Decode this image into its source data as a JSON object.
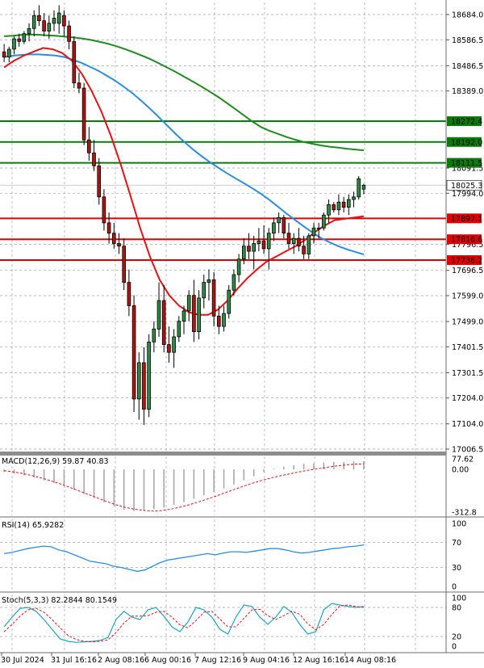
{
  "chart_data": {
    "type": "candlestick",
    "main": {
      "y_ticks": [
        18684.0,
        18586.5,
        18486.5,
        18389.0,
        18091.5,
        17994.0,
        17796.5,
        17696.5,
        17599.0,
        17499.0,
        17401.5,
        17301.5,
        17204.0,
        17104.0,
        17006.5
      ],
      "ylim": [
        17006.5,
        18728
      ],
      "current_price": "18025.3",
      "x_ticks": [
        "30 Jul 2024",
        "31 Jul 16:16",
        "2 Aug 08:16",
        "6 Aug 00:16",
        "7 Aug 12:16",
        "9 Aug 04:16",
        "12 Aug 16:16",
        "14 Aug 08:16"
      ],
      "support_levels": [
        {
          "label": "17897.1",
          "value": 17897.1,
          "color": "#e00000"
        },
        {
          "label": "17816.6",
          "value": 17816.6,
          "color": "#e00000"
        },
        {
          "label": "17736.2",
          "value": 17736.2,
          "color": "#e00000"
        }
      ],
      "resistance_levels": [
        {
          "label": "18272.4",
          "value": 18272.4,
          "color": "#0a7a0a"
        },
        {
          "label": "18192.0",
          "value": 18192.0,
          "color": "#0a7a0a"
        },
        {
          "label": "18111.5",
          "value": 18111.5,
          "color": "#0a7a0a"
        }
      ],
      "candles": [
        [
          18540,
          18570,
          18500,
          18520
        ],
        [
          18520,
          18560,
          18500,
          18550
        ],
        [
          18550,
          18600,
          18530,
          18590
        ],
        [
          18590,
          18610,
          18560,
          18580
        ],
        [
          18580,
          18620,
          18570,
          18610
        ],
        [
          18610,
          18650,
          18580,
          18630
        ],
        [
          18630,
          18700,
          18600,
          18680
        ],
        [
          18680,
          18720,
          18640,
          18660
        ],
        [
          18660,
          18690,
          18600,
          18620
        ],
        [
          18620,
          18680,
          18590,
          18650
        ],
        [
          18650,
          18700,
          18620,
          18670
        ],
        [
          18650,
          18720,
          18610,
          18690
        ],
        [
          18680,
          18700,
          18600,
          18640
        ],
        [
          18640,
          18660,
          18550,
          18580
        ],
        [
          18580,
          18600,
          18400,
          18420
        ],
        [
          18420,
          18460,
          18380,
          18400
        ],
        [
          18400,
          18420,
          18180,
          18200
        ],
        [
          18200,
          18250,
          18120,
          18150
        ],
        [
          18150,
          18200,
          18080,
          18100
        ],
        [
          18100,
          18130,
          17950,
          17980
        ],
        [
          17980,
          18010,
          17850,
          17880
        ],
        [
          17880,
          17920,
          17800,
          17840
        ],
        [
          17840,
          17880,
          17780,
          17800
        ],
        [
          17800,
          17840,
          17760,
          17790
        ],
        [
          17790,
          17820,
          17620,
          17650
        ],
        [
          17650,
          17700,
          17520,
          17560
        ],
        [
          17560,
          17600,
          17150,
          17200
        ],
        [
          17200,
          17380,
          17120,
          17340
        ],
        [
          17340,
          17400,
          17100,
          17160
        ],
        [
          17160,
          17450,
          17130,
          17420
        ],
        [
          17420,
          17500,
          17380,
          17470
        ],
        [
          17470,
          17650,
          17440,
          17580
        ],
        [
          17580,
          17640,
          17380,
          17410
        ],
        [
          17410,
          17480,
          17340,
          17380
        ],
        [
          17380,
          17470,
          17320,
          17440
        ],
        [
          17440,
          17520,
          17420,
          17500
        ],
        [
          17500,
          17560,
          17450,
          17540
        ],
        [
          17540,
          17620,
          17500,
          17600
        ],
        [
          17600,
          17660,
          17420,
          17460
        ],
        [
          17460,
          17620,
          17430,
          17590
        ],
        [
          17590,
          17680,
          17550,
          17650
        ],
        [
          17650,
          17700,
          17580,
          17660
        ],
        [
          17660,
          17690,
          17480,
          17520
        ],
        [
          17520,
          17560,
          17450,
          17480
        ],
        [
          17480,
          17560,
          17460,
          17530
        ],
        [
          17530,
          17640,
          17510,
          17620
        ],
        [
          17620,
          17700,
          17600,
          17680
        ],
        [
          17680,
          17760,
          17650,
          17740
        ],
        [
          17740,
          17820,
          17720,
          17790
        ],
        [
          17790,
          17840,
          17740,
          17770
        ],
        [
          17770,
          17830,
          17700,
          17800
        ],
        [
          17800,
          17860,
          17770,
          17810
        ],
        [
          17810,
          17870,
          17760,
          17780
        ],
        [
          17780,
          17860,
          17700,
          17840
        ],
        [
          17840,
          17900,
          17810,
          17880
        ],
        [
          17880,
          17920,
          17840,
          17900
        ],
        [
          17900,
          17910,
          17820,
          17840
        ],
        [
          17840,
          17880,
          17780,
          17800
        ],
        [
          17800,
          17840,
          17760,
          17820
        ],
        [
          17820,
          17860,
          17770,
          17790
        ],
        [
          17790,
          17830,
          17740,
          17760
        ],
        [
          17760,
          17840,
          17740,
          17830
        ],
        [
          17830,
          17880,
          17800,
          17860
        ],
        [
          17860,
          17880,
          17820,
          17860
        ],
        [
          17860,
          17920,
          17850,
          17910
        ],
        [
          17910,
          17970,
          17880,
          17950
        ],
        [
          17950,
          17960,
          17920,
          17930
        ],
        [
          17930,
          17990,
          17910,
          17960
        ],
        [
          17960,
          17980,
          17920,
          17940
        ],
        [
          17940,
          17990,
          17910,
          17970
        ],
        [
          17970,
          18000,
          17940,
          17980
        ],
        [
          17980,
          18060,
          17970,
          18050
        ],
        [
          18010,
          18030,
          17990,
          18025.3
        ]
      ],
      "ma_lines": [
        {
          "color": "#1e8c1e",
          "values": [
            18600,
            18602,
            18605,
            18607,
            18606,
            18604,
            18602,
            18599,
            18596,
            18592,
            18587,
            18580,
            18572,
            18563,
            18552,
            18540,
            18527,
            18513,
            18497,
            18480,
            18463,
            18445,
            18426,
            18407,
            18387,
            18366,
            18343,
            18319,
            18295,
            18271,
            18250,
            18235,
            18223,
            18211,
            18201,
            18192,
            18185,
            18179,
            18174,
            18170,
            18166,
            18163,
            18160
          ]
        },
        {
          "color": "#2b8de0",
          "values": [
            18520,
            18525,
            18528,
            18530,
            18530,
            18528,
            18526,
            18520,
            18510,
            18498,
            18483,
            18467,
            18448,
            18428,
            18405,
            18380,
            18352,
            18322,
            18290,
            18257,
            18224,
            18194,
            18165,
            18139,
            18115,
            18093,
            18072,
            18052,
            18033,
            18013,
            17992,
            17968,
            17942,
            17915,
            17890,
            17866,
            17843,
            17822,
            17805,
            17790,
            17778,
            17768,
            17758
          ]
        },
        {
          "color": "#e01414",
          "values": [
            18480,
            18505,
            18525,
            18540,
            18555,
            18550,
            18535,
            18505,
            18455,
            18390,
            18310,
            18215,
            18105,
            17985,
            17860,
            17750,
            17660,
            17600,
            17560,
            17535,
            17525,
            17525,
            17545,
            17580,
            17625,
            17665,
            17700,
            17730,
            17750,
            17770,
            17790,
            17815,
            17845,
            17870,
            17890,
            17895,
            17900,
            17905
          ]
        }
      ]
    },
    "macd": {
      "label": "MACD(12,26,9) 59.87 40.83",
      "ticks": [
        "77.62",
        "0.00",
        "-312.8"
      ],
      "range": [
        -312.8,
        77.62
      ],
      "histogram": [
        -20,
        -30,
        -45,
        -60,
        -80,
        -100,
        -120,
        -150,
        -180,
        -210,
        -240,
        -270,
        -295,
        -305,
        -300,
        -290,
        -280,
        -260,
        -240,
        -215,
        -190,
        -165,
        -140,
        -110,
        -80,
        -50,
        -20,
        5,
        20,
        30,
        40,
        45,
        50,
        55,
        55,
        58,
        60
      ],
      "signal": [
        -10,
        -18,
        -30,
        -45,
        -62,
        -82,
        -104,
        -128,
        -154,
        -180,
        -206,
        -232,
        -256,
        -276,
        -290,
        -300,
        -305,
        -302,
        -292,
        -278,
        -260,
        -240,
        -218,
        -195,
        -170,
        -146,
        -122,
        -100,
        -80,
        -62,
        -46,
        -32,
        -18,
        -6,
        5,
        15,
        25,
        32,
        38,
        41
      ]
    },
    "rsi": {
      "label": "RSI(14) 65.9282",
      "ticks": [
        "100",
        "70",
        "30",
        "0"
      ],
      "range": [
        0,
        100
      ],
      "values": [
        52,
        54,
        57,
        60,
        62,
        64,
        63,
        58,
        55,
        50,
        45,
        40,
        38,
        36,
        32,
        30,
        27,
        24,
        26,
        32,
        38,
        42,
        44,
        46,
        48,
        50,
        52,
        50,
        53,
        55,
        55,
        54,
        56,
        58,
        60,
        60,
        58,
        55,
        53,
        54,
        56,
        58,
        60,
        61,
        63,
        64,
        65.93
      ]
    },
    "stoch": {
      "label": "Stoch(5,3,3) 82.2844 80.1549",
      "ticks": [
        "100",
        "80",
        "20",
        "0"
      ],
      "range": [
        0,
        100
      ],
      "k": [
        40,
        60,
        78,
        80,
        72,
        55,
        35,
        15,
        10,
        8,
        9,
        10,
        12,
        18,
        55,
        72,
        60,
        55,
        75,
        80,
        62,
        40,
        30,
        50,
        80,
        75,
        60,
        35,
        25,
        60,
        85,
        82,
        60,
        45,
        60,
        82,
        70,
        45,
        25,
        30,
        75,
        88,
        85,
        82,
        80,
        82
      ],
      "d": [
        30,
        45,
        62,
        75,
        78,
        70,
        55,
        38,
        22,
        14,
        10,
        9,
        10,
        13,
        28,
        48,
        62,
        62,
        63,
        70,
        72,
        60,
        44,
        38,
        53,
        70,
        72,
        56,
        40,
        40,
        57,
        75,
        76,
        63,
        55,
        63,
        72,
        66,
        46,
        34,
        45,
        65,
        83,
        85,
        82,
        80
      ]
    }
  }
}
